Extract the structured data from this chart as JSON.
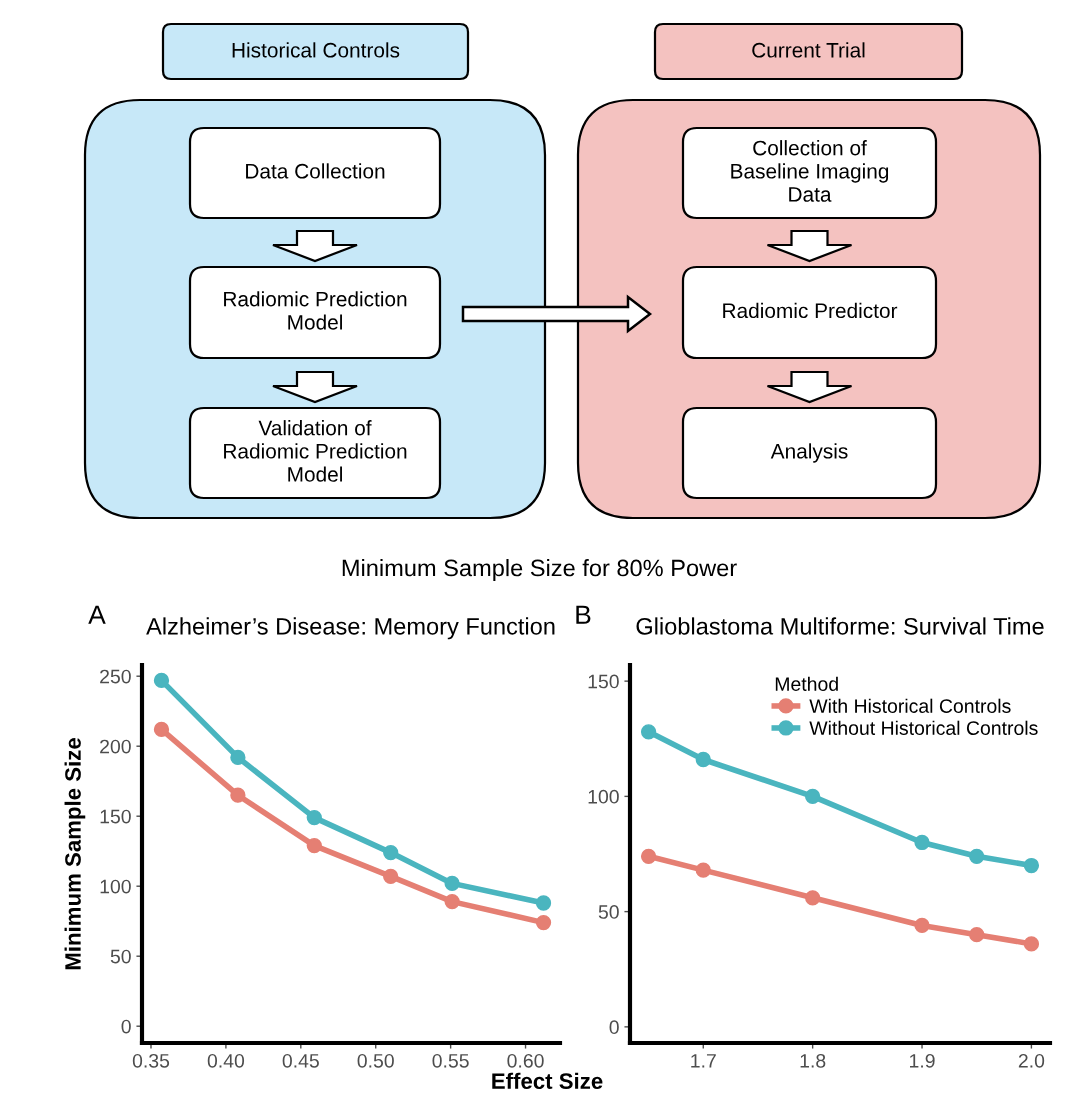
{
  "chart_data": [
    {
      "type": "other",
      "annotations": [
        "Historical Controls",
        "Current Trial",
        "Data Collection",
        "Radiomic Prediction\nModel",
        "Validation of\nRadiomic Prediction\nModel",
        "Collection of\nBaseline Imaging\nData",
        "Radiomic Predictor",
        "Analysis"
      ]
    },
    {
      "type": "line",
      "title": "Alzheimer’s Disease: Memory Function",
      "xlabel": "Effect Size",
      "ylabel": "Minimum Sample Size",
      "annotations": [
        "Minimum Sample Size for 80% Power",
        "A"
      ],
      "x": [
        0.357,
        0.408,
        0.459,
        0.51,
        0.551,
        0.612
      ],
      "series": [
        {
          "color": "#e57f73",
          "values": [
            212,
            165,
            129,
            107,
            89,
            74
          ]
        },
        {
          "color": "#4ab5bf",
          "values": [
            247,
            192,
            149,
            124,
            102,
            88
          ]
        }
      ],
      "xlim": [
        0.344,
        0.623
      ],
      "ylim": [
        -12,
        258
      ],
      "xticks": [
        {
          "value": 0.35,
          "label": "0.35"
        },
        {
          "value": 0.4,
          "label": "0.40"
        },
        {
          "value": 0.45,
          "label": "0.45"
        },
        {
          "value": 0.5,
          "label": "0.50"
        },
        {
          "value": 0.55,
          "label": "0.55"
        },
        {
          "value": 0.6,
          "label": "0.60"
        }
      ],
      "yticks": [
        0,
        50,
        100,
        150,
        200,
        250
      ],
      "marker": "circle",
      "line_style": "solid",
      "grid": false,
      "legend": false
    },
    {
      "type": "line",
      "title": "Glioblastoma Multiforme: Survival Time",
      "legend_title": "Method",
      "annotations": [
        "B"
      ],
      "x": [
        1.65,
        1.7,
        1.8,
        1.9,
        1.95,
        2.0
      ],
      "series": [
        {
          "name": "With Historical Controls",
          "color": "#e57f73",
          "values": [
            74,
            68,
            56,
            44,
            40,
            36
          ]
        },
        {
          "name": "Without Historical Controls",
          "color": "#4ab5bf",
          "values": [
            128,
            116,
            100,
            80,
            74,
            70
          ]
        }
      ],
      "xlim": [
        1.633,
        2.017
      ],
      "ylim": [
        -7,
        157
      ],
      "xticks": [
        1.7,
        1.8,
        1.9,
        {
          "value": 2.0,
          "label": "2.0"
        }
      ],
      "yticks": [
        0,
        50,
        100,
        150
      ],
      "marker": "circle",
      "line_style": "solid",
      "grid": false,
      "legend": "top right"
    }
  ]
}
